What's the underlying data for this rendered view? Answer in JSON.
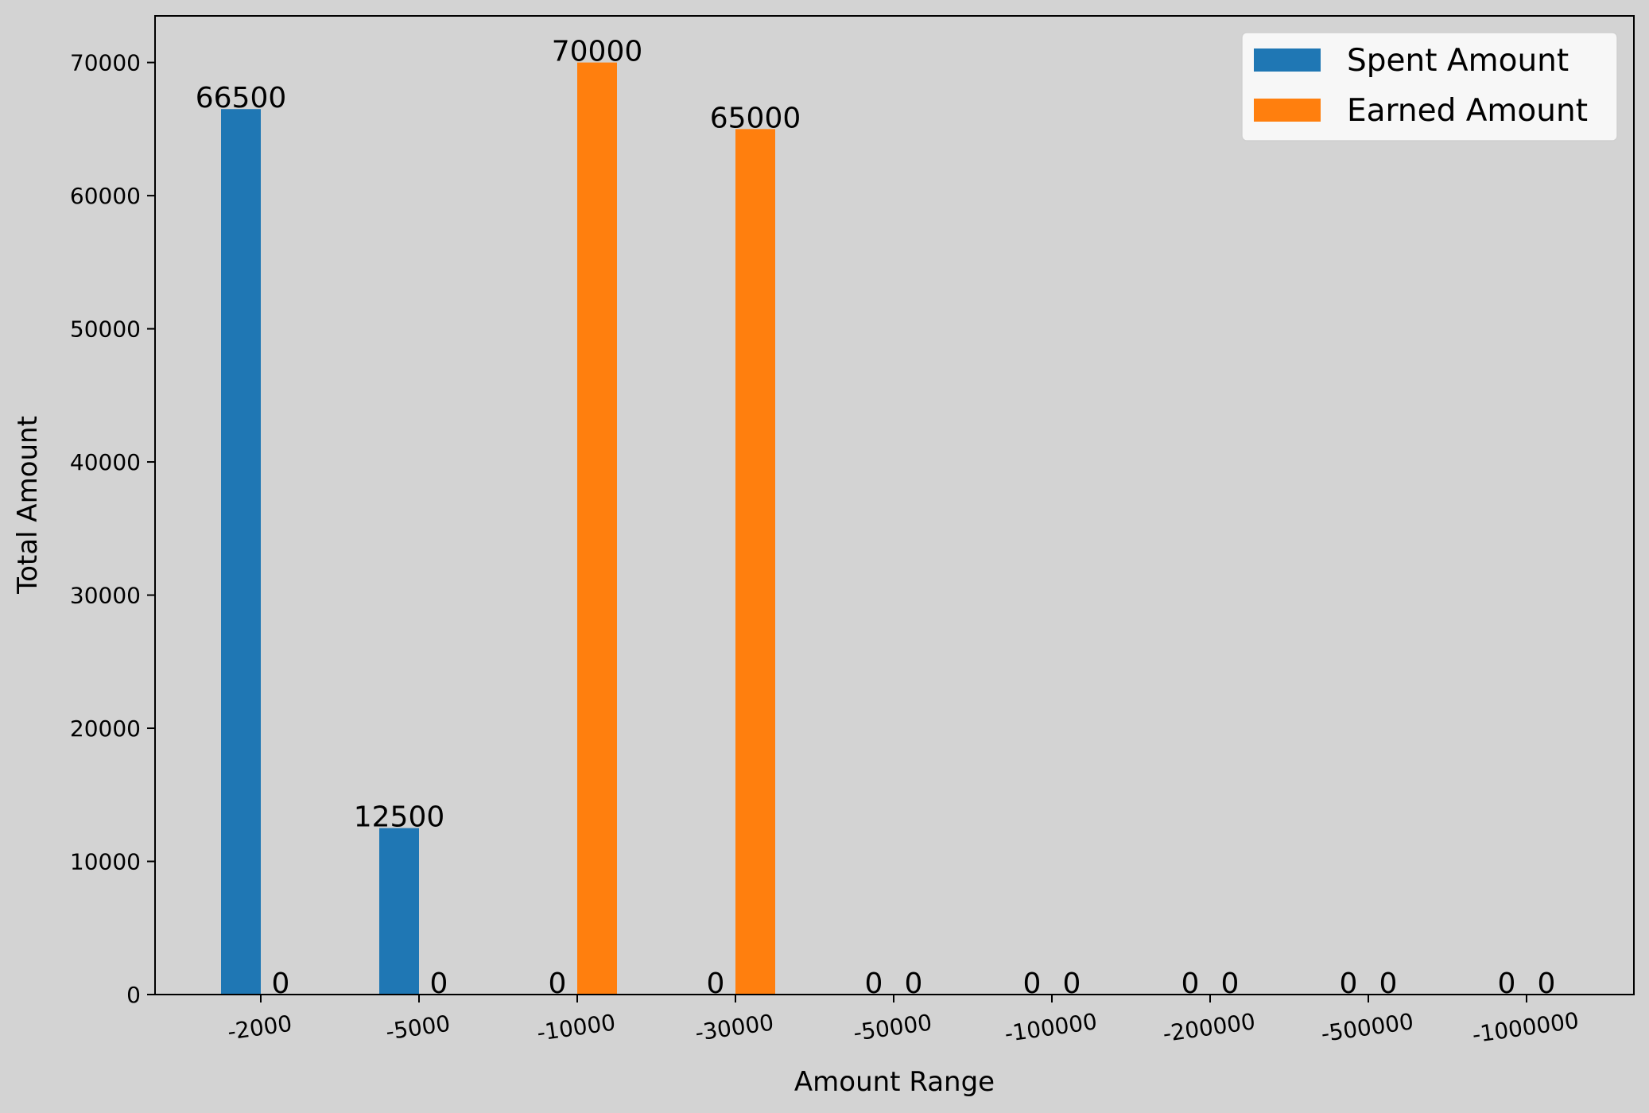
{
  "chart_data": {
    "type": "bar",
    "title": "",
    "xlabel": "Amount Range",
    "ylabel": "Total Amount",
    "categories": [
      "-2000",
      "-5000",
      "-10000",
      "-30000",
      "-50000",
      "-100000",
      "-200000",
      "-500000",
      "-1000000"
    ],
    "series": [
      {
        "name": "Spent Amount",
        "color": "#1f77b4",
        "values": [
          66500,
          12500,
          0,
          0,
          0,
          0,
          0,
          0,
          0
        ]
      },
      {
        "name": "Earned Amount",
        "color": "#ff7f0e",
        "values": [
          0,
          0,
          70000,
          65000,
          0,
          0,
          0,
          0,
          0
        ]
      }
    ],
    "ylim": [
      0,
      73500
    ],
    "yticks": [
      0,
      10000,
      20000,
      30000,
      40000,
      50000,
      60000,
      70000
    ],
    "grid": false,
    "legend_position": "top-right",
    "background_color": "#d3d3d3"
  }
}
